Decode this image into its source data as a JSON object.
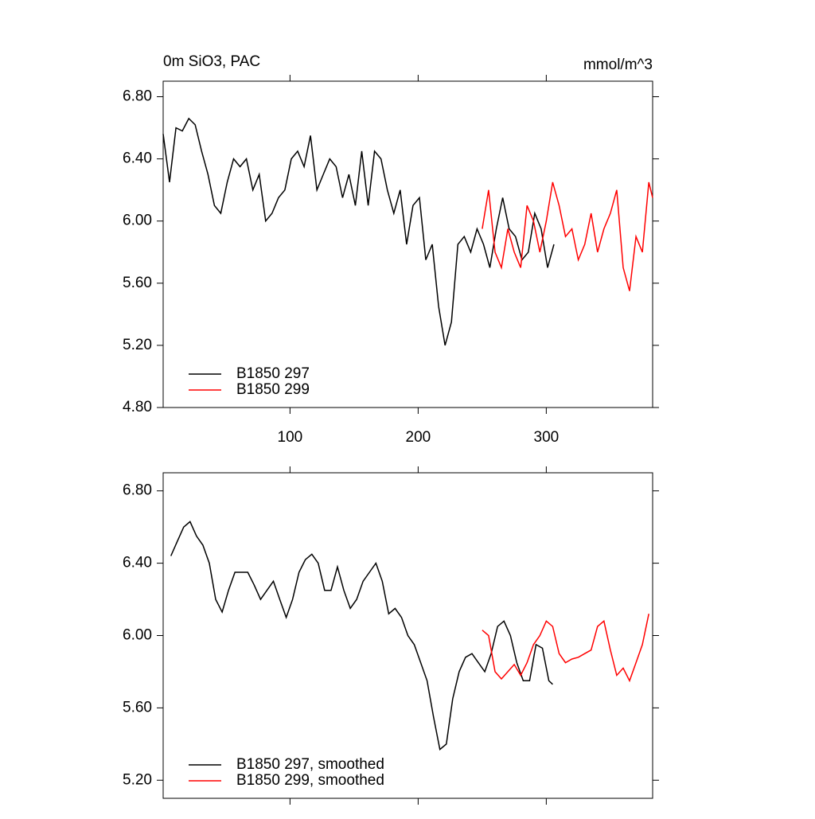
{
  "chart_data": [
    {
      "type": "line",
      "title": "0m SiO3, PAC",
      "units": "mmol/m^3",
      "xlim": [
        1,
        383
      ],
      "ylim": [
        4.8,
        6.9
      ],
      "xticks": [
        100,
        200,
        300
      ],
      "yticks": [
        {
          "value": 4.8,
          "label": "4.80"
        },
        {
          "value": 5.2,
          "label": "5.20"
        },
        {
          "value": 5.6,
          "label": "5.60"
        },
        {
          "value": 6.0,
          "label": "6.00"
        },
        {
          "value": 6.4,
          "label": "6.40"
        },
        {
          "value": 6.8,
          "label": "6.80"
        }
      ],
      "show_xtick_labels": true,
      "legend": "lower left",
      "series": [
        {
          "name": "B1850 297",
          "color": "#000000",
          "x": [
            1,
            6,
            11,
            16,
            21,
            26,
            31,
            36,
            41,
            46,
            51,
            56,
            61,
            66,
            71,
            76,
            81,
            86,
            91,
            96,
            101,
            106,
            111,
            116,
            121,
            126,
            131,
            136,
            141,
            146,
            151,
            156,
            161,
            166,
            171,
            176,
            181,
            186,
            191,
            196,
            201,
            206,
            211,
            216,
            221,
            226,
            231,
            236,
            241,
            246,
            251,
            256,
            261,
            266,
            271,
            276,
            281,
            286,
            291,
            296,
            301,
            306
          ],
          "values": [
            6.56,
            6.25,
            6.6,
            6.58,
            6.66,
            6.62,
            6.45,
            6.3,
            6.1,
            6.05,
            6.25,
            6.4,
            6.35,
            6.4,
            6.2,
            6.3,
            6.0,
            6.05,
            6.15,
            6.2,
            6.4,
            6.45,
            6.35,
            6.55,
            6.2,
            6.3,
            6.4,
            6.35,
            6.15,
            6.3,
            6.1,
            6.45,
            6.1,
            6.45,
            6.4,
            6.2,
            6.05,
            6.2,
            5.85,
            6.1,
            6.15,
            5.75,
            5.85,
            5.45,
            5.2,
            5.35,
            5.85,
            5.9,
            5.8,
            5.95,
            5.85,
            5.7,
            5.95,
            6.15,
            5.95,
            5.9,
            5.75,
            5.8,
            6.05,
            5.95,
            5.7,
            5.85
          ]
        },
        {
          "name": "B1850 299",
          "color": "#ff0000",
          "x": [
            250,
            255,
            260,
            265,
            270,
            275,
            280,
            285,
            290,
            295,
            300,
            305,
            310,
            315,
            320,
            325,
            330,
            335,
            340,
            345,
            350,
            355,
            360,
            365,
            370,
            375,
            380,
            383
          ],
          "values": [
            5.95,
            6.2,
            5.8,
            5.7,
            5.95,
            5.8,
            5.7,
            6.1,
            6.0,
            5.8,
            6.0,
            6.25,
            6.1,
            5.9,
            5.95,
            5.75,
            5.85,
            6.05,
            5.8,
            5.95,
            6.05,
            6.2,
            5.7,
            5.55,
            5.9,
            5.8,
            6.25,
            6.15
          ]
        }
      ]
    },
    {
      "type": "line",
      "xlim": [
        1,
        383
      ],
      "ylim": [
        5.1,
        6.9
      ],
      "xticks": [
        100,
        200,
        300
      ],
      "yticks": [
        {
          "value": 5.2,
          "label": "5.20"
        },
        {
          "value": 5.6,
          "label": "5.60"
        },
        {
          "value": 6.0,
          "label": "6.00"
        },
        {
          "value": 6.4,
          "label": "6.40"
        },
        {
          "value": 6.8,
          "label": "6.80"
        }
      ],
      "show_xtick_labels": false,
      "legend": "lower left",
      "series": [
        {
          "name": "B1850 297, smoothed",
          "color": "#000000",
          "x": [
            7,
            12,
            17,
            22,
            27,
            32,
            37,
            42,
            47,
            52,
            57,
            62,
            67,
            72,
            77,
            82,
            87,
            92,
            97,
            102,
            107,
            112,
            117,
            122,
            127,
            132,
            137,
            142,
            147,
            152,
            157,
            162,
            167,
            172,
            177,
            182,
            187,
            192,
            197,
            202,
            207,
            212,
            217,
            222,
            227,
            232,
            237,
            242,
            247,
            252,
            257,
            262,
            267,
            272,
            277,
            282,
            287,
            292,
            297,
            302,
            305
          ],
          "values": [
            6.44,
            6.52,
            6.6,
            6.63,
            6.55,
            6.5,
            6.4,
            6.2,
            6.13,
            6.25,
            6.35,
            6.35,
            6.35,
            6.28,
            6.2,
            6.25,
            6.3,
            6.2,
            6.1,
            6.2,
            6.35,
            6.42,
            6.45,
            6.4,
            6.25,
            6.25,
            6.38,
            6.25,
            6.15,
            6.2,
            6.3,
            6.35,
            6.4,
            6.3,
            6.12,
            6.15,
            6.1,
            6.0,
            5.95,
            5.85,
            5.75,
            5.55,
            5.37,
            5.4,
            5.65,
            5.8,
            5.88,
            5.9,
            5.85,
            5.8,
            5.9,
            6.05,
            6.08,
            6.0,
            5.85,
            5.75,
            5.75,
            5.95,
            5.93,
            5.75,
            5.73
          ]
        },
        {
          "name": "B1850 299, smoothed",
          "color": "#ff0000",
          "x": [
            250,
            255,
            260,
            265,
            270,
            275,
            280,
            285,
            290,
            295,
            300,
            305,
            310,
            315,
            320,
            325,
            330,
            335,
            340,
            345,
            350,
            355,
            360,
            365,
            370,
            375,
            380
          ],
          "values": [
            6.03,
            6.0,
            5.8,
            5.76,
            5.8,
            5.84,
            5.78,
            5.85,
            5.95,
            6.0,
            6.08,
            6.05,
            5.9,
            5.85,
            5.87,
            5.88,
            5.9,
            5.92,
            6.05,
            6.08,
            5.92,
            5.78,
            5.82,
            5.75,
            5.85,
            5.95,
            6.12
          ]
        }
      ]
    }
  ]
}
